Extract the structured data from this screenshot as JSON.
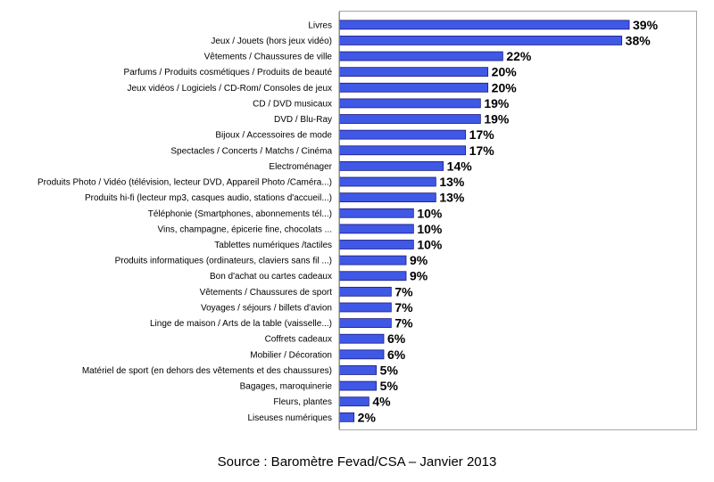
{
  "chart_data": {
    "type": "bar",
    "orientation": "horizontal",
    "categories": [
      "Livres",
      "Jeux / Jouets (hors jeux vidéo)",
      "Vêtements / Chaussures de ville",
      "Parfums / Produits cosmétiques / Produits de beauté",
      "Jeux vidéos / Logiciels / CD-Rom/ Consoles de jeux",
      "CD / DVD musicaux",
      "DVD / Blu-Ray",
      "Bijoux / Accessoires de mode",
      "Spectacles / Concerts / Matchs / Cinéma",
      "Electroménager",
      "Produits Photo / Vidéo (télévision, lecteur DVD, Appareil Photo /Caméra...)",
      "Produits hi-fi (lecteur mp3, casques audio, stations d'accueil...)",
      "Téléphonie (Smartphones, abonnements tél...)",
      "Vins, champagne, épicerie fine, chocolats ...",
      "Tablettes numériques /tactiles",
      "Produits informatiques (ordinateurs, claviers sans fil ...)",
      "Bon d'achat ou cartes cadeaux",
      "Vêtements / Chaussures de sport",
      "Voyages / séjours / billets d'avion",
      "Linge de maison / Arts de la table (vaisselle...)",
      "Coffrets cadeaux",
      "Mobilier / Décoration",
      "Matériel de sport (en dehors des vêtements et des chaussures)",
      "Bagages, maroquinerie",
      "Fleurs, plantes",
      "Liseuses numériques"
    ],
    "values": [
      39,
      38,
      22,
      20,
      20,
      19,
      19,
      17,
      17,
      14,
      13,
      13,
      10,
      10,
      10,
      9,
      9,
      7,
      7,
      7,
      6,
      6,
      5,
      5,
      4,
      2
    ],
    "value_labels": [
      "39%",
      "38%",
      "22%",
      "20%",
      "20%",
      "19%",
      "19%",
      "17%",
      "17%",
      "14%",
      "13%",
      "13%",
      "10%",
      "10%",
      "10%",
      "9%",
      "9%",
      "7%",
      "7%",
      "7%",
      "6%",
      "6%",
      "5%",
      "5%",
      "4%",
      "2%"
    ],
    "xlim": [
      0,
      48
    ],
    "grid": false,
    "legend": "none",
    "bar_color": "#3f58e6",
    "bar_edge_color": "#1a1a80"
  },
  "source": "Source : Baromètre Fevad/CSA – Janvier 2013"
}
